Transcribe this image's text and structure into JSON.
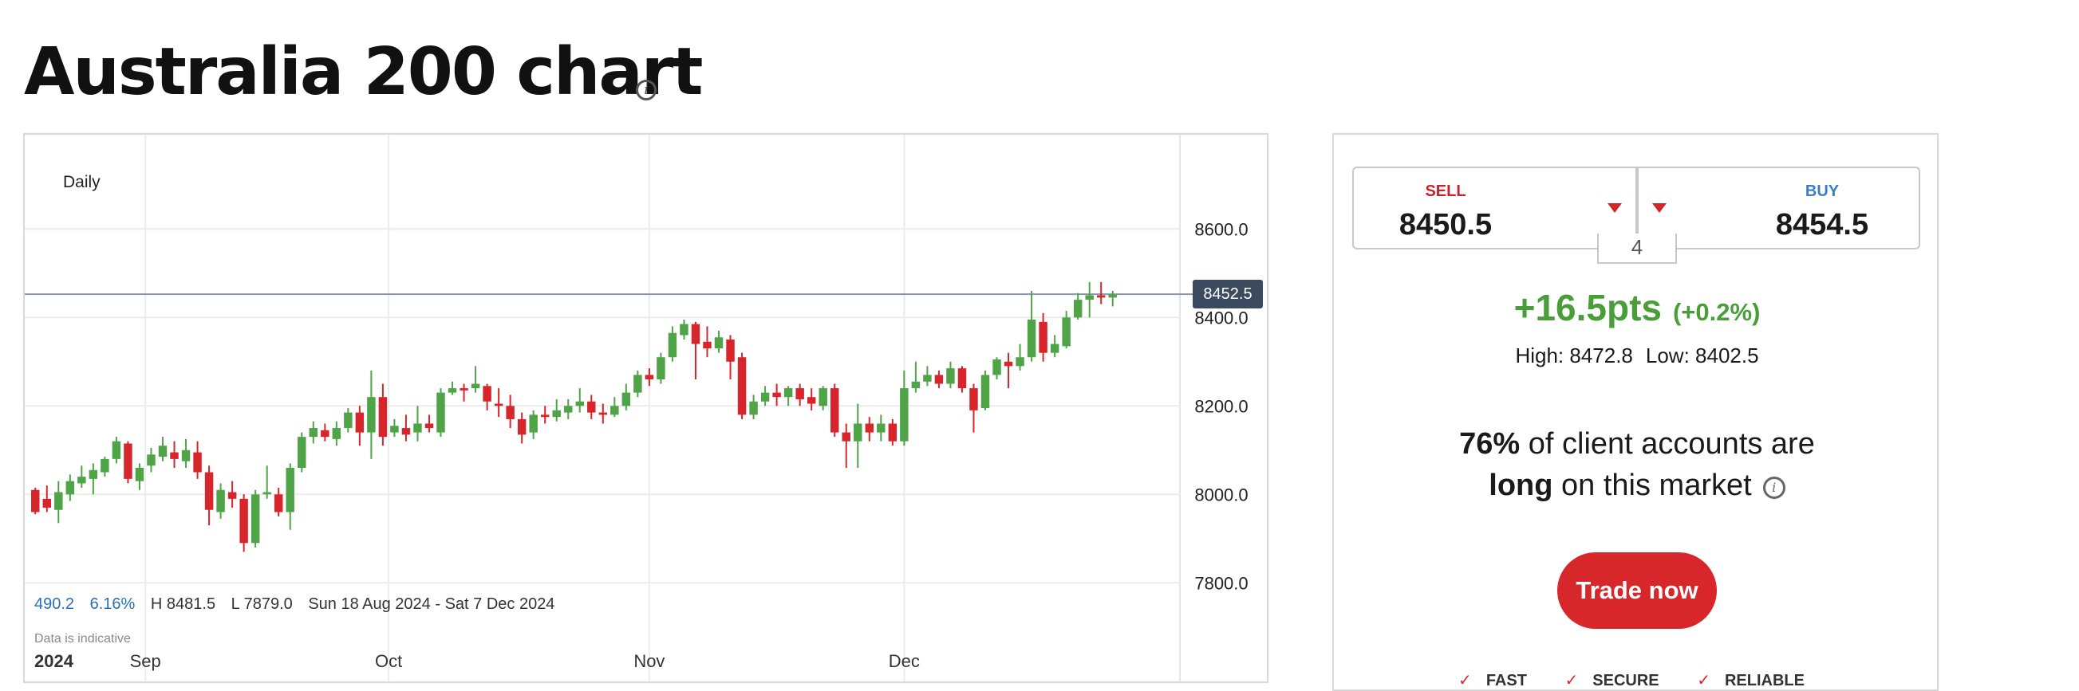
{
  "page": {
    "title": "Australia 200 chart"
  },
  "chart": {
    "interval_label": "Daily",
    "current_price_tag": "8452.5",
    "stats": {
      "change_value": "490.2",
      "change_pct": "6.16%",
      "high": "H 8481.5",
      "low": "L 7879.0",
      "range": "Sun 18 Aug 2024 - Sat 7 Dec 2024"
    },
    "indicative_note": "Data is indicative"
  },
  "chart_data": {
    "type": "candlestick",
    "y_ticks": [
      8600,
      8400,
      8200,
      8000,
      7800
    ],
    "y_tick_labels": [
      "8600.0",
      "8400.0",
      "8200.0",
      "8000.0",
      "7800.0"
    ],
    "ylim": [
      7660,
      8705
    ],
    "x_labels": [
      {
        "label": "2024",
        "index": 0
      },
      {
        "label": "Sep",
        "index": 9.5
      },
      {
        "label": "Oct",
        "index": 30.5
      },
      {
        "label": "Nov",
        "index": 53
      },
      {
        "label": "Dec",
        "index": 75
      }
    ],
    "current_price": 8452.5,
    "candles": [
      [
        8010,
        7960,
        8015,
        7955
      ],
      [
        7990,
        7970,
        8020,
        7960
      ],
      [
        7965,
        8005,
        8030,
        7935
      ],
      [
        8000,
        8030,
        8045,
        7985
      ],
      [
        8025,
        8040,
        8065,
        8015
      ],
      [
        8035,
        8055,
        8070,
        8000
      ],
      [
        8050,
        8080,
        8085,
        8040
      ],
      [
        8080,
        8120,
        8130,
        8070
      ],
      [
        8115,
        8035,
        8120,
        8025
      ],
      [
        8030,
        8060,
        8070,
        8010
      ],
      [
        8065,
        8090,
        8105,
        8050
      ],
      [
        8085,
        8110,
        8130,
        8075
      ],
      [
        8095,
        8080,
        8120,
        8060
      ],
      [
        8075,
        8100,
        8125,
        8060
      ],
      [
        8095,
        8050,
        8120,
        8035
      ],
      [
        8050,
        7965,
        8065,
        7930
      ],
      [
        7960,
        8010,
        8025,
        7945
      ],
      [
        8005,
        7990,
        8030,
        7970
      ],
      [
        7990,
        7890,
        8000,
        7870
      ],
      [
        7890,
        8000,
        8010,
        7880
      ],
      [
        8000,
        8005,
        8065,
        7990
      ],
      [
        8000,
        7960,
        8015,
        7950
      ],
      [
        7960,
        8060,
        8070,
        7920
      ],
      [
        8060,
        8130,
        8140,
        8050
      ],
      [
        8130,
        8150,
        8165,
        8115
      ],
      [
        8145,
        8130,
        8160,
        8120
      ],
      [
        8125,
        8150,
        8165,
        8110
      ],
      [
        8150,
        8185,
        8195,
        8140
      ],
      [
        8185,
        8140,
        8200,
        8110
      ],
      [
        8140,
        8220,
        8280,
        8080
      ],
      [
        8220,
        8130,
        8250,
        8110
      ],
      [
        8140,
        8155,
        8170,
        8130
      ],
      [
        8150,
        8135,
        8180,
        8120
      ],
      [
        8140,
        8160,
        8200,
        8120
      ],
      [
        8160,
        8150,
        8180,
        8140
      ],
      [
        8140,
        8230,
        8240,
        8130
      ],
      [
        8230,
        8240,
        8255,
        8225
      ],
      [
        8240,
        8235,
        8250,
        8210
      ],
      [
        8240,
        8250,
        8290,
        8230
      ],
      [
        8245,
        8210,
        8250,
        8190
      ],
      [
        8205,
        8200,
        8240,
        8175
      ],
      [
        8200,
        8170,
        8225,
        8150
      ],
      [
        8170,
        8135,
        8185,
        8115
      ],
      [
        8140,
        8180,
        8190,
        8125
      ],
      [
        8180,
        8175,
        8200,
        8160
      ],
      [
        8175,
        8190,
        8215,
        8165
      ],
      [
        8185,
        8200,
        8215,
        8170
      ],
      [
        8200,
        8210,
        8240,
        8185
      ],
      [
        8210,
        8185,
        8225,
        8170
      ],
      [
        8185,
        8180,
        8205,
        8160
      ],
      [
        8180,
        8200,
        8220,
        8175
      ],
      [
        8200,
        8230,
        8250,
        8190
      ],
      [
        8230,
        8270,
        8280,
        8220
      ],
      [
        8270,
        8260,
        8285,
        8245
      ],
      [
        8260,
        8310,
        8320,
        8250
      ],
      [
        8310,
        8365,
        8380,
        8300
      ],
      [
        8360,
        8385,
        8395,
        8350
      ],
      [
        8385,
        8340,
        8390,
        8260
      ],
      [
        8345,
        8330,
        8380,
        8310
      ],
      [
        8330,
        8355,
        8370,
        8320
      ],
      [
        8350,
        8300,
        8360,
        8260
      ],
      [
        8310,
        8180,
        8320,
        8170
      ],
      [
        8180,
        8210,
        8225,
        8170
      ],
      [
        8210,
        8230,
        8245,
        8200
      ],
      [
        8230,
        8220,
        8250,
        8200
      ],
      [
        8220,
        8240,
        8245,
        8200
      ],
      [
        8240,
        8215,
        8250,
        8200
      ],
      [
        8220,
        8205,
        8240,
        8190
      ],
      [
        8200,
        8240,
        8245,
        8190
      ],
      [
        8240,
        8140,
        8250,
        8130
      ],
      [
        8140,
        8120,
        8160,
        8060
      ],
      [
        8120,
        8160,
        8205,
        8060
      ],
      [
        8160,
        8140,
        8175,
        8120
      ],
      [
        8140,
        8160,
        8180,
        8120
      ],
      [
        8160,
        8120,
        8170,
        8110
      ],
      [
        8120,
        8240,
        8280,
        8110
      ],
      [
        8240,
        8255,
        8300,
        8230
      ],
      [
        8255,
        8270,
        8290,
        8245
      ],
      [
        8270,
        8250,
        8280,
        8240
      ],
      [
        8250,
        8285,
        8300,
        8240
      ],
      [
        8285,
        8240,
        8290,
        8230
      ],
      [
        8240,
        8190,
        8250,
        8140
      ],
      [
        8195,
        8270,
        8280,
        8190
      ],
      [
        8270,
        8305,
        8310,
        8260
      ],
      [
        8300,
        8290,
        8320,
        8240
      ],
      [
        8290,
        8310,
        8340,
        8280
      ],
      [
        8310,
        8395,
        8460,
        8300
      ],
      [
        8390,
        8320,
        8410,
        8300
      ],
      [
        8320,
        8340,
        8360,
        8310
      ],
      [
        8335,
        8400,
        8415,
        8330
      ],
      [
        8400,
        8440,
        8455,
        8395
      ],
      [
        8440,
        8450,
        8480,
        8400
      ],
      [
        8450,
        8445,
        8480,
        8430
      ],
      [
        8445,
        8452,
        8460,
        8425
      ]
    ]
  },
  "panel": {
    "sell_label": "SELL",
    "sell_price": "8450.5",
    "buy_label": "BUY",
    "buy_price": "8454.5",
    "spread": "4",
    "change_pts": "+16.5pts",
    "change_pct": "(+0.2%)",
    "high": "High: 8472.8",
    "low": "Low: 8402.5",
    "sentiment_pct": "76%",
    "sentiment_mid": " of client accounts are",
    "sentiment_dir": "long",
    "sentiment_tail": " on this market",
    "trade_button": "Trade now",
    "badges": [
      "FAST",
      "SECURE",
      "RELIABLE"
    ]
  },
  "colors": {
    "up": "#4fa447",
    "down": "#d7262b",
    "accent_red": "#d8272b",
    "change_green": "#4a9e3a"
  },
  "icons": {
    "title_info": "info-icon",
    "sentiment_info": "info-icon",
    "dropdown": "chevron-down-icon"
  }
}
